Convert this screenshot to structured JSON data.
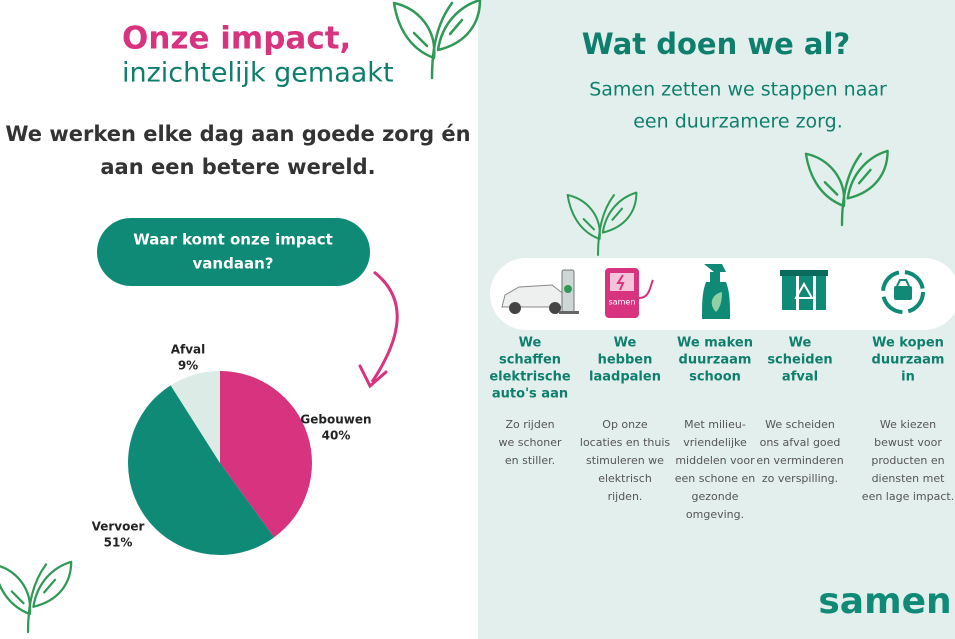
{
  "left": {
    "title": "Onze impact,",
    "subtitle": "inzichtelijk gemaakt",
    "statement": [
      "We werken elke dag aan goede zorg én",
      "aan een betere wereld."
    ],
    "button": [
      "Waar komt onze impact",
      "vandaan?"
    ]
  },
  "chart_data": {
    "type": "pie",
    "categories": [
      "Gebouwen",
      "Vervoer",
      "Afval"
    ],
    "values": [
      40,
      51,
      9
    ],
    "value_labels": [
      "40%",
      "51%",
      "9%"
    ],
    "colors": [
      "#d7337f",
      "#0f8a77",
      "#dcebe6"
    ]
  },
  "right": {
    "title": "Wat doen we al?",
    "subtitle": [
      "Samen zetten we stappen naar",
      "een duurzamere zorg."
    ],
    "items": [
      {
        "heading": [
          "We",
          "schaffen",
          "elektrische",
          "auto's aan"
        ],
        "text": [
          "Zo rijden",
          "we schoner",
          "en stiller."
        ]
      },
      {
        "heading": [
          "We",
          "hebben",
          "laadpalen"
        ],
        "text": [
          "Op onze",
          "locaties en thuis",
          "stimuleren we",
          "elektrisch",
          "rijden."
        ]
      },
      {
        "heading": [
          "We maken",
          "duurzaam",
          "schoon"
        ],
        "text": [
          "Met milieu-",
          "vriendelijke",
          "middelen voor",
          "een schone en",
          "gezonde",
          "omgeving."
        ]
      },
      {
        "heading": [
          "We",
          "scheiden",
          "afval"
        ],
        "text": [
          "We scheiden",
          "ons afval goed",
          "en verminderen",
          "zo verspilling."
        ]
      },
      {
        "heading": [
          "We kopen",
          "duurzaam",
          "in"
        ],
        "text": [
          "We kiezen",
          "bewust voor",
          "producten en",
          "diensten met",
          "een lage impact."
        ]
      }
    ],
    "logo": "samen"
  }
}
